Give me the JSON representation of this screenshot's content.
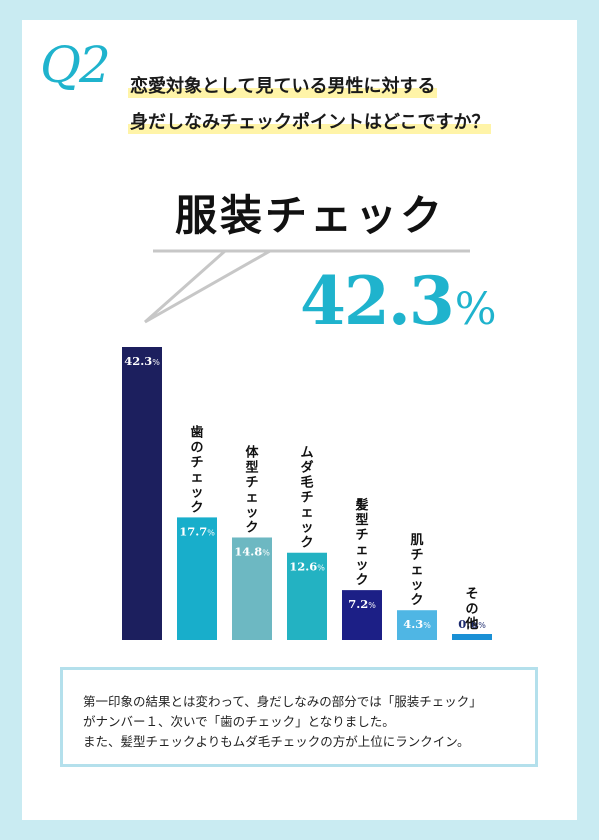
{
  "question": {
    "mark": "Q2",
    "line1": "恋愛対象として見ている男性に対する",
    "line2": "身だしなみチェックポイントはどこですか？"
  },
  "headline": "服装チェック",
  "highlight": {
    "value": "42.3",
    "unit": "%"
  },
  "chart_data": {
    "type": "bar",
    "categories": [
      "服装チェック",
      "歯のチェック",
      "体型チェック",
      "ムダ毛チェック",
      "髪型チェック",
      "肌チェック",
      "その他"
    ],
    "category_labels": [
      "",
      "歯のチェック",
      "体型チェック",
      "ムダ毛チェック",
      "髪型チェック",
      "肌チェック",
      "その他"
    ],
    "values": [
      42.3,
      17.7,
      14.8,
      12.6,
      7.2,
      4.3,
      0.6
    ],
    "value_labels": [
      "42.3",
      "17.7",
      "14.8",
      "12.6",
      "7.2",
      "4.3",
      "0.6"
    ],
    "unit": "%",
    "colors": [
      "#1c1f5e",
      "#18aecb",
      "#6db8c2",
      "#23b2c2",
      "#1c1f86",
      "#4fb6e4",
      "#1a90d5"
    ],
    "label_colors": [
      "#ffffff",
      "#ffffff",
      "#ffffff",
      "#ffffff",
      "#ffffff",
      "#ffffff",
      "#1c2a6e"
    ],
    "ylim": [
      0,
      42.3
    ],
    "title": "",
    "xlabel": "",
    "ylabel": ""
  },
  "note": {
    "line1": "第一印象の結果とは変わって、身だしなみの部分では「服装チェック」",
    "line2": "がナンバー１、次いで「歯のチェック」となりました。",
    "line3": "また、髪型チェックよりもムダ毛チェックの方が上位にランクイン。"
  }
}
